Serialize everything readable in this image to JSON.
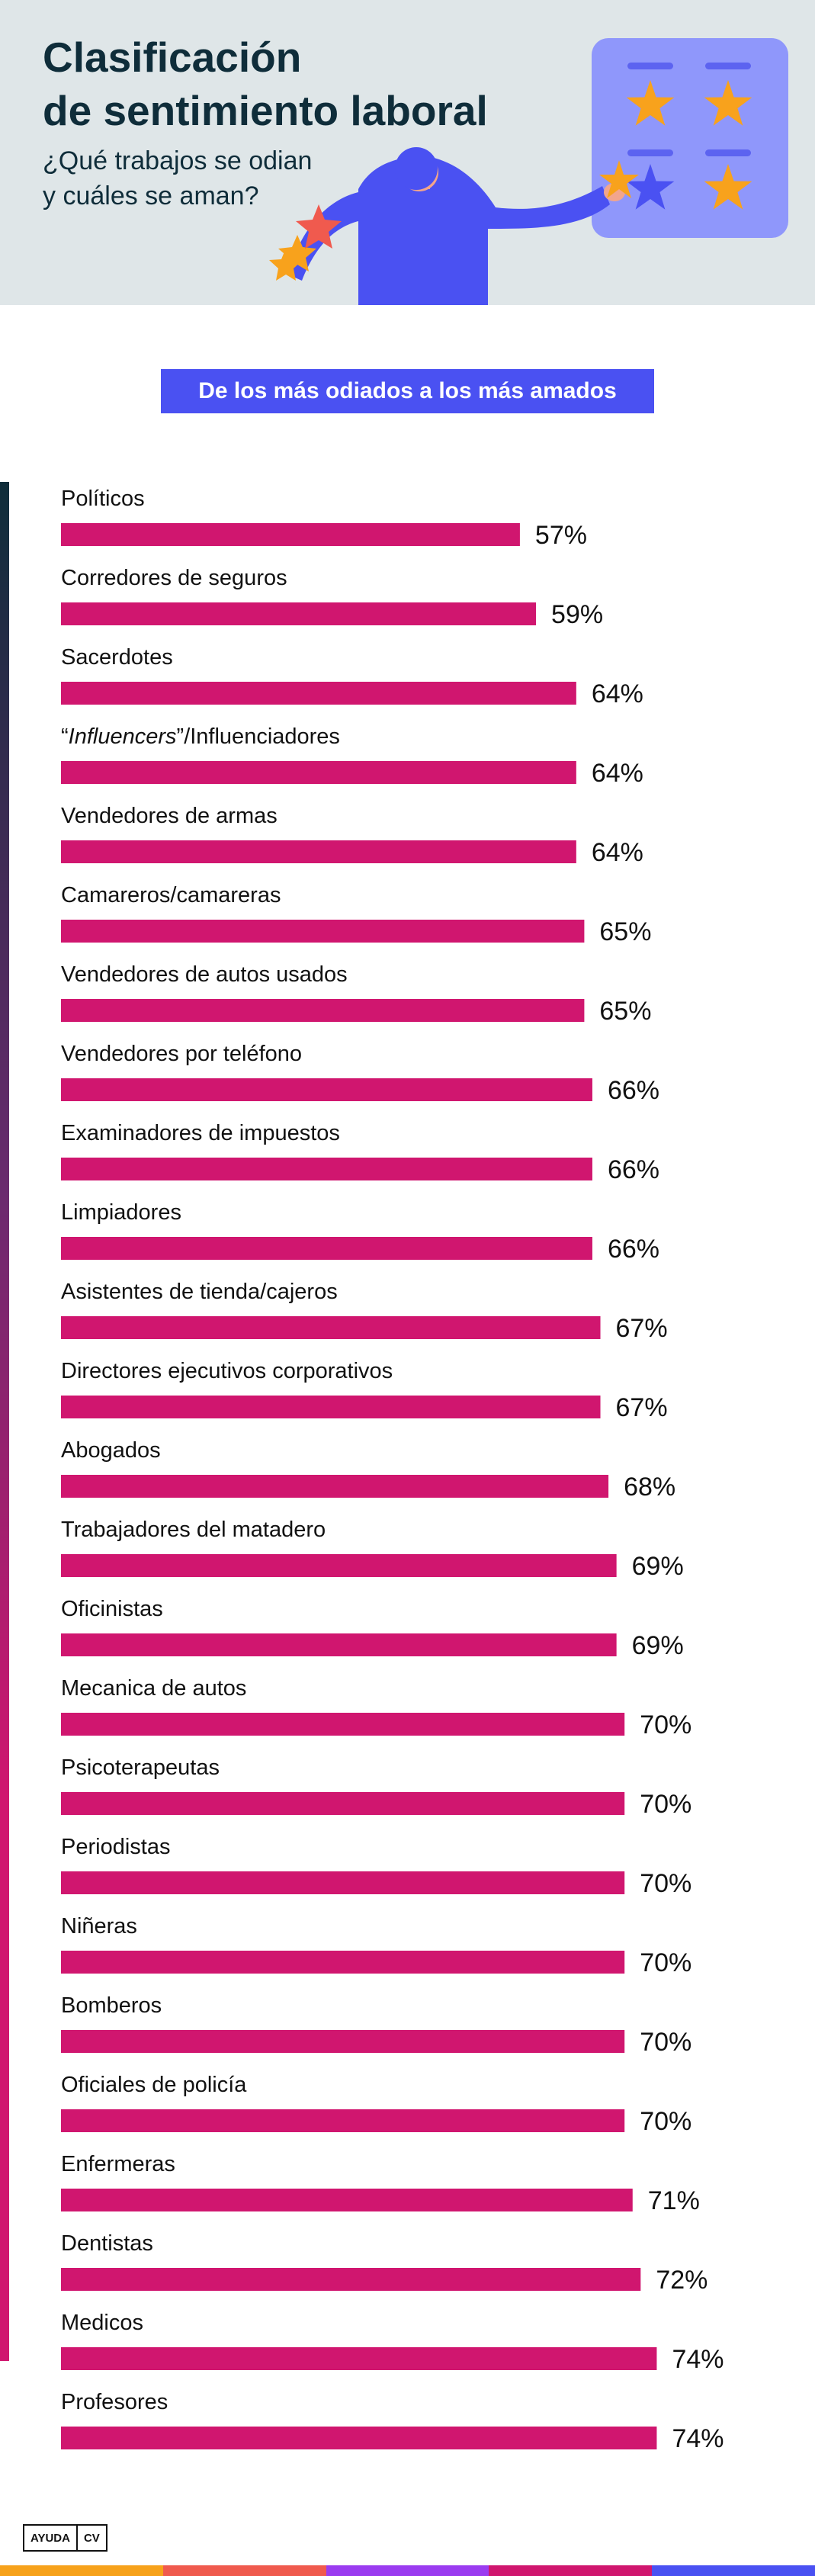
{
  "header": {
    "title": "Clasificación\nde sentimiento laboral",
    "subtitle": "¿Qué trabajos se odian\ny cuáles se aman?"
  },
  "section_heading": "De los más odiados a los más amados",
  "logo": {
    "part1": "AYUDA",
    "part2": "CV"
  },
  "colors": {
    "bar": "#d0166f",
    "pill": "#4a51f2",
    "title": "#0f2d3a",
    "header_bg": "#dfe6e8",
    "footer_stripes": [
      "#f7a21b",
      "#f05a4e",
      "#9b3cf0",
      "#d0166f",
      "#4a51f2"
    ]
  },
  "chart_data": {
    "type": "bar",
    "orientation": "horizontal",
    "title": "",
    "xlabel": "",
    "ylabel": "",
    "categories": [
      "Políticos",
      "Corredores de seguros",
      "Sacerdotes",
      "“Influencers”/Influenciadores",
      "Vendedores de armas",
      "Camareros/camareras",
      "Vendedores de autos usados",
      "Vendedores por teléfono",
      "Examinadores de impuestos",
      "Limpiadores",
      "Asistentes de tienda/cajeros",
      "Directores ejecutivos corporativos",
      "Abogados",
      "Trabajadores del matadero",
      "Oficinistas",
      "Mecanica de autos",
      "Psicoterapeutas",
      "Periodistas",
      "Niñeras",
      "Bomberos",
      "Oficiales de policía",
      "Enfermeras",
      "Dentistas",
      "Medicos",
      "Profesores"
    ],
    "values": [
      57,
      59,
      64,
      64,
      64,
      65,
      65,
      66,
      66,
      66,
      67,
      67,
      68,
      69,
      69,
      70,
      70,
      70,
      70,
      70,
      70,
      71,
      72,
      74,
      74
    ],
    "value_labels": [
      "57%",
      "59%",
      "64%",
      "64%",
      "64%",
      "65%",
      "65%",
      "66%",
      "66%",
      "66%",
      "67%",
      "67%",
      "68%",
      "69%",
      "69%",
      "70%",
      "70%",
      "70%",
      "70%",
      "70%",
      "70%",
      "71%",
      "72%",
      "74%",
      "74%"
    ],
    "grid": false,
    "legend": "none"
  }
}
